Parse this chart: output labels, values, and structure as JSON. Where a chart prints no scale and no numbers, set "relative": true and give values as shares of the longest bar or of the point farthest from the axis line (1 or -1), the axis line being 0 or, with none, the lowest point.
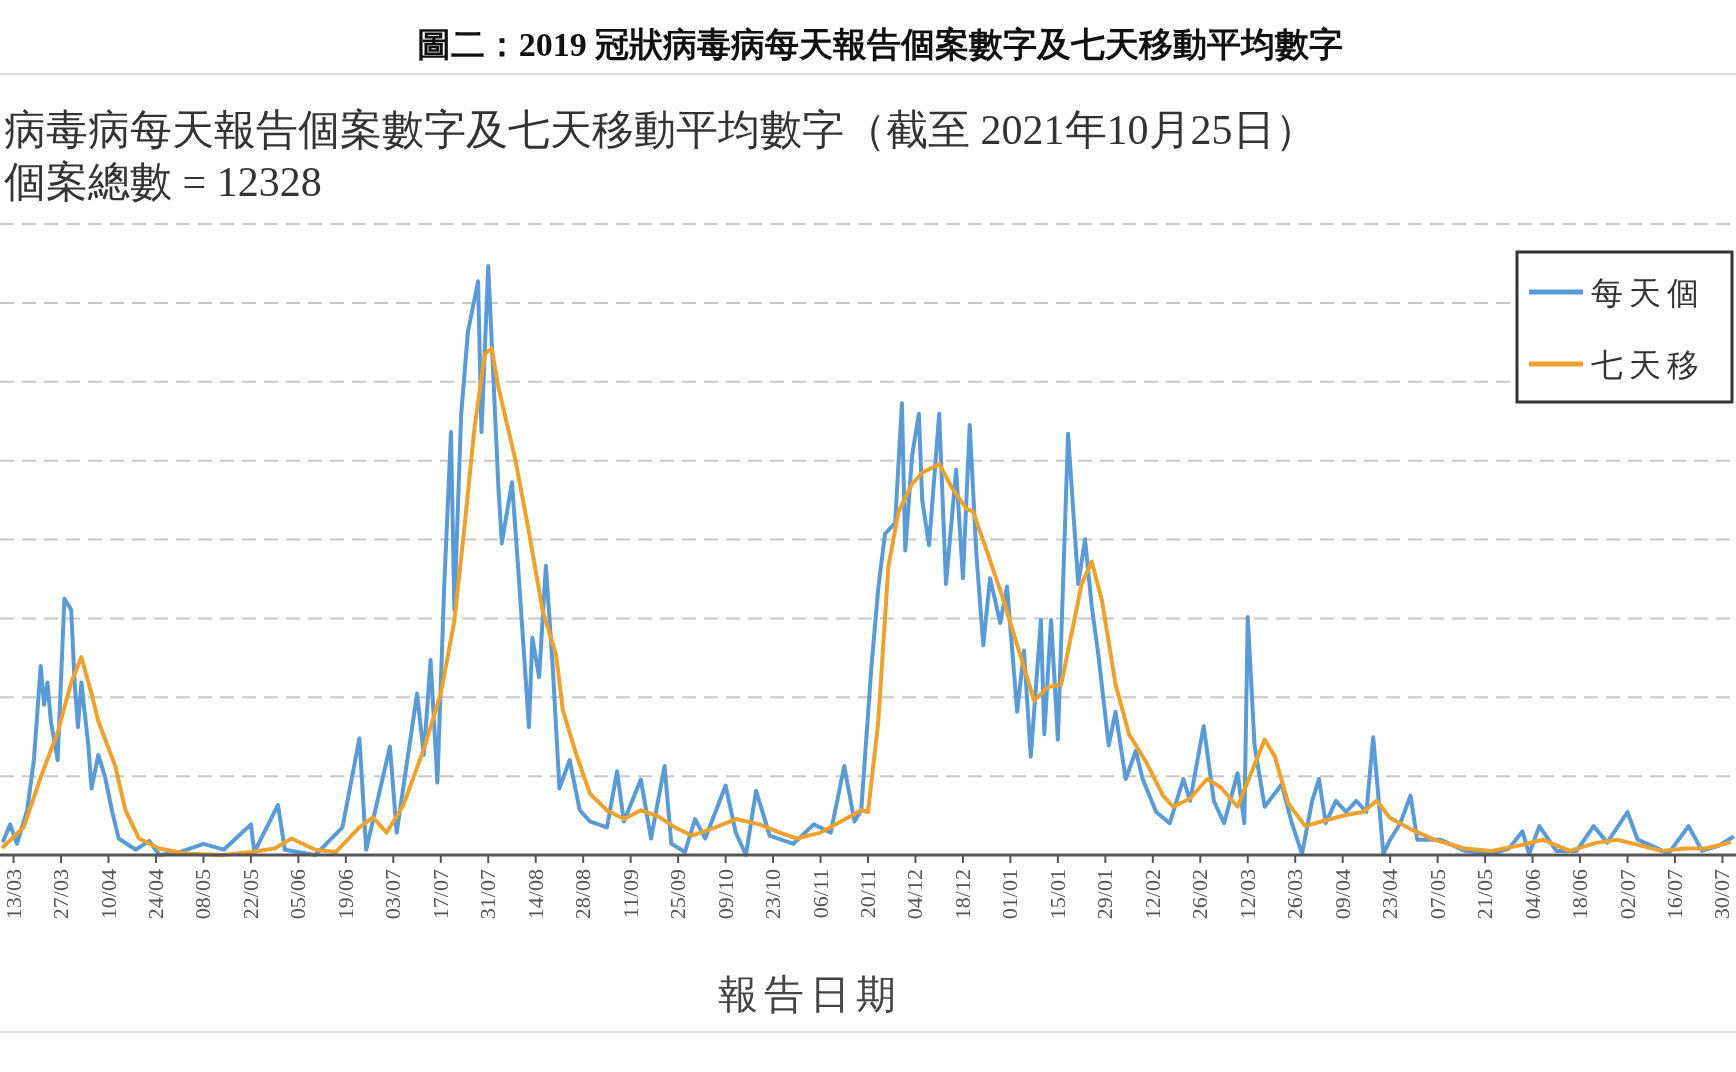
{
  "chart_data": {
    "type": "line",
    "title": "圖二：2019 冠狀病毒病每天報告個案數字及七天移動平均數字",
    "subtitle": "病毒病每天報告個案數字及七天移動平均數字（截至 2021年10月25日）",
    "annotations": [
      "個案總數 = 12328"
    ],
    "xlabel": "報告日期",
    "relative": true,
    "grid": "y",
    "legend": "top right",
    "xlim": [
      "2020-03-09",
      "2021-08-03"
    ],
    "xticks": [
      {
        "value": "2020-03-13",
        "label": "13/03"
      },
      {
        "value": "2020-03-27",
        "label": "27/03"
      },
      {
        "value": "2020-04-10",
        "label": "10/04"
      },
      {
        "value": "2020-04-24",
        "label": "24/04"
      },
      {
        "value": "2020-05-08",
        "label": "08/05"
      },
      {
        "value": "2020-05-22",
        "label": "22/05"
      },
      {
        "value": "2020-06-05",
        "label": "05/06"
      },
      {
        "value": "2020-06-19",
        "label": "19/06"
      },
      {
        "value": "2020-07-03",
        "label": "03/07"
      },
      {
        "value": "2020-07-17",
        "label": "17/07"
      },
      {
        "value": "2020-07-31",
        "label": "31/07"
      },
      {
        "value": "2020-08-14",
        "label": "14/08"
      },
      {
        "value": "2020-08-28",
        "label": "28/08"
      },
      {
        "value": "2020-09-11",
        "label": "11/09"
      },
      {
        "value": "2020-09-25",
        "label": "25/09"
      },
      {
        "value": "2020-10-09",
        "label": "09/10"
      },
      {
        "value": "2020-10-23",
        "label": "23/10"
      },
      {
        "value": "2020-11-06",
        "label": "06/11"
      },
      {
        "value": "2020-11-20",
        "label": "20/11"
      },
      {
        "value": "2020-12-04",
        "label": "04/12"
      },
      {
        "value": "2020-12-18",
        "label": "18/12"
      },
      {
        "value": "2021-01-01",
        "label": "01/01"
      },
      {
        "value": "2021-01-15",
        "label": "15/01"
      },
      {
        "value": "2021-01-29",
        "label": "29/01"
      },
      {
        "value": "2021-02-12",
        "label": "12/02"
      },
      {
        "value": "2021-02-26",
        "label": "26/02"
      },
      {
        "value": "2021-03-12",
        "label": "12/03"
      },
      {
        "value": "2021-03-26",
        "label": "26/03"
      },
      {
        "value": "2021-04-09",
        "label": "09/04"
      },
      {
        "value": "2021-04-23",
        "label": "23/04"
      },
      {
        "value": "2021-05-07",
        "label": "07/05"
      },
      {
        "value": "2021-05-21",
        "label": "21/05"
      },
      {
        "value": "2021-06-04",
        "label": "04/06"
      },
      {
        "value": "2021-06-18",
        "label": "18/06"
      },
      {
        "value": "2021-07-02",
        "label": "02/07"
      },
      {
        "value": "2021-07-16",
        "label": "16/07"
      },
      {
        "value": "2021-07-30",
        "label": "30/07"
      }
    ],
    "series": [
      {
        "name": "每天個",
        "color": "#5b9bd5",
        "x": [
          "2020-03-10",
          "2020-03-12",
          "2020-03-14",
          "2020-03-17",
          "2020-03-19",
          "2020-03-21",
          "2020-03-22",
          "2020-03-23",
          "2020-03-24",
          "2020-03-26",
          "2020-03-28",
          "2020-03-30",
          "2020-03-31",
          "2020-04-01",
          "2020-04-02",
          "2020-04-04",
          "2020-04-05",
          "2020-04-07",
          "2020-04-09",
          "2020-04-11",
          "2020-04-13",
          "2020-04-18",
          "2020-04-22",
          "2020-04-25",
          "2020-05-01",
          "2020-05-08",
          "2020-05-14",
          "2020-05-22",
          "2020-05-23",
          "2020-05-30",
          "2020-06-01",
          "2020-06-10",
          "2020-06-18",
          "2020-06-23",
          "2020-06-25",
          "2020-07-02",
          "2020-07-04",
          "2020-07-10",
          "2020-07-12",
          "2020-07-14",
          "2020-07-16",
          "2020-07-18",
          "2020-07-20",
          "2020-07-21",
          "2020-07-23",
          "2020-07-25",
          "2020-07-28",
          "2020-07-29",
          "2020-07-31",
          "2020-08-03",
          "2020-08-04",
          "2020-08-07",
          "2020-08-09",
          "2020-08-12",
          "2020-08-13",
          "2020-08-15",
          "2020-08-17",
          "2020-08-19",
          "2020-08-21",
          "2020-08-24",
          "2020-08-27",
          "2020-08-30",
          "2020-09-04",
          "2020-09-07",
          "2020-09-09",
          "2020-09-14",
          "2020-09-17",
          "2020-09-21",
          "2020-09-23",
          "2020-09-27",
          "2020-09-30",
          "2020-10-03",
          "2020-10-09",
          "2020-10-12",
          "2020-10-15",
          "2020-10-18",
          "2020-10-22",
          "2020-10-29",
          "2020-11-04",
          "2020-11-09",
          "2020-11-13",
          "2020-11-16",
          "2020-11-18",
          "2020-11-21",
          "2020-11-23",
          "2020-11-25",
          "2020-11-28",
          "2020-11-30",
          "2020-12-01",
          "2020-12-03",
          "2020-12-05",
          "2020-12-06",
          "2020-12-08",
          "2020-12-11",
          "2020-12-13",
          "2020-12-16",
          "2020-12-18",
          "2020-12-20",
          "2020-12-22",
          "2020-12-24",
          "2020-12-26",
          "2020-12-29",
          "2020-12-31",
          "2021-01-03",
          "2021-01-05",
          "2021-01-07",
          "2021-01-10",
          "2021-01-11",
          "2021-01-13",
          "2021-01-15",
          "2021-01-18",
          "2021-01-21",
          "2021-01-23",
          "2021-01-25",
          "2021-01-27",
          "2021-01-30",
          "2021-02-01",
          "2021-02-04",
          "2021-02-07",
          "2021-02-09",
          "2021-02-13",
          "2021-02-17",
          "2021-02-21",
          "2021-02-23",
          "2021-02-27",
          "2021-03-02",
          "2021-03-05",
          "2021-03-09",
          "2021-03-11",
          "2021-03-12",
          "2021-03-14",
          "2021-03-17",
          "2021-03-22",
          "2021-03-25",
          "2021-03-28",
          "2021-03-31",
          "2021-04-02",
          "2021-04-04",
          "2021-04-07",
          "2021-04-10",
          "2021-04-13",
          "2021-04-16",
          "2021-04-18",
          "2021-04-21",
          "2021-04-23",
          "2021-04-26",
          "2021-04-29",
          "2021-05-01",
          "2021-05-08",
          "2021-05-15",
          "2021-05-23",
          "2021-05-28",
          "2021-06-01",
          "2021-06-03",
          "2021-06-06",
          "2021-06-11",
          "2021-06-17",
          "2021-06-22",
          "2021-06-26",
          "2021-07-02",
          "2021-07-05",
          "2021-07-11",
          "2021-07-14",
          "2021-07-20",
          "2021-07-24",
          "2021-07-29",
          "2021-08-02"
        ],
        "values": [
          0.024,
          0.052,
          0.019,
          0.076,
          0.161,
          0.321,
          0.255,
          0.293,
          0.227,
          0.161,
          0.435,
          0.416,
          0.293,
          0.217,
          0.293,
          0.189,
          0.113,
          0.17,
          0.132,
          0.076,
          0.028,
          0.009,
          0.024,
          0,
          0.005,
          0.019,
          0.009,
          0.052,
          0.005,
          0.085,
          0.009,
          0,
          0.047,
          0.198,
          0.009,
          0.184,
          0.038,
          0.274,
          0.17,
          0.331,
          0.123,
          0.454,
          0.718,
          0.416,
          0.747,
          0.888,
          0.974,
          0.718,
          1.0,
          0.624,
          0.529,
          0.633,
          0.473,
          0.217,
          0.369,
          0.302,
          0.491,
          0.321,
          0.113,
          0.161,
          0.076,
          0.057,
          0.047,
          0.142,
          0.057,
          0.128,
          0.028,
          0.151,
          0.019,
          0.005,
          0.061,
          0.028,
          0.118,
          0.038,
          0,
          0.109,
          0.033,
          0.019,
          0.052,
          0.038,
          0.151,
          0.057,
          0.076,
          0.319,
          0.451,
          0.545,
          0.564,
          0.767,
          0.517,
          0.678,
          0.749,
          0.602,
          0.526,
          0.749,
          0.46,
          0.654,
          0.47,
          0.73,
          0.508,
          0.356,
          0.47,
          0.394,
          0.456,
          0.243,
          0.347,
          0.167,
          0.399,
          0.205,
          0.399,
          0.196,
          0.715,
          0.46,
          0.536,
          0.422,
          0.337,
          0.186,
          0.243,
          0.129,
          0.177,
          0.129,
          0.073,
          0.054,
          0.129,
          0.092,
          0.219,
          0.092,
          0.054,
          0.139,
          0.054,
          0.404,
          0.186,
          0.082,
          0.12,
          0.054,
          0.002,
          0.092,
          0.129,
          0.054,
          0.092,
          0.073,
          0.092,
          0.073,
          0.2,
          0.002,
          0.026,
          0.054,
          0.101,
          0.026,
          0.026,
          0.007,
          0.002,
          0.011,
          0.04,
          0.002,
          0.049,
          0.007,
          0.007,
          0.049,
          0.021,
          0.073,
          0.026,
          0.011,
          0.002,
          0.049,
          0.007,
          0.016,
          0.03
        ]
      },
      {
        "name": "七天移",
        "color": "#eda12f",
        "x": [
          "2020-03-10",
          "2020-03-16",
          "2020-03-21",
          "2020-03-26",
          "2020-03-30",
          "2020-04-02",
          "2020-04-05",
          "2020-04-07",
          "2020-04-12",
          "2020-04-15",
          "2020-04-19",
          "2020-04-25",
          "2020-05-03",
          "2020-05-14",
          "2020-05-22",
          "2020-05-29",
          "2020-06-03",
          "2020-06-10",
          "2020-06-16",
          "2020-06-23",
          "2020-06-27",
          "2020-07-01",
          "2020-07-06",
          "2020-07-12",
          "2020-07-17",
          "2020-07-21",
          "2020-07-24",
          "2020-07-27",
          "2020-07-30",
          "2020-08-01",
          "2020-08-03",
          "2020-08-08",
          "2020-08-12",
          "2020-08-16",
          "2020-08-20",
          "2020-08-22",
          "2020-08-26",
          "2020-08-30",
          "2020-09-04",
          "2020-09-09",
          "2020-09-14",
          "2020-09-19",
          "2020-09-24",
          "2020-09-29",
          "2020-10-06",
          "2020-10-12",
          "2020-10-19",
          "2020-10-25",
          "2020-10-30",
          "2020-11-06",
          "2020-11-12",
          "2020-11-18",
          "2020-11-20",
          "2020-11-23",
          "2020-11-26",
          "2020-11-29",
          "2020-12-03",
          "2020-12-06",
          "2020-12-11",
          "2020-12-15",
          "2020-12-19",
          "2020-12-21",
          "2020-12-25",
          "2020-12-30",
          "2021-01-02",
          "2021-01-05",
          "2021-01-08",
          "2021-01-12",
          "2021-01-16",
          "2021-01-19",
          "2021-01-22",
          "2021-01-25",
          "2021-01-28",
          "2021-02-01",
          "2021-02-05",
          "2021-02-10",
          "2021-02-15",
          "2021-02-18",
          "2021-02-23",
          "2021-02-28",
          "2021-03-04",
          "2021-03-09",
          "2021-03-13",
          "2021-03-17",
          "2021-03-20",
          "2021-03-24",
          "2021-03-29",
          "2021-04-04",
          "2021-04-10",
          "2021-04-15",
          "2021-04-19",
          "2021-04-23",
          "2021-04-29",
          "2021-05-06",
          "2021-05-15",
          "2021-05-23",
          "2021-05-31",
          "2021-06-07",
          "2021-06-15",
          "2021-06-23",
          "2021-06-29",
          "2021-07-06",
          "2021-07-12",
          "2021-07-19",
          "2021-07-25",
          "2021-08-01"
        ],
        "values": [
          0.014,
          0.047,
          0.132,
          0.208,
          0.293,
          0.336,
          0.274,
          0.227,
          0.151,
          0.076,
          0.028,
          0.011,
          0.002,
          0,
          0.005,
          0.011,
          0.028,
          0.009,
          0.005,
          0.047,
          0.064,
          0.038,
          0.085,
          0.18,
          0.274,
          0.397,
          0.558,
          0.728,
          0.851,
          0.86,
          0.794,
          0.671,
          0.548,
          0.416,
          0.34,
          0.246,
          0.17,
          0.104,
          0.076,
          0.061,
          0.076,
          0.066,
          0.047,
          0.033,
          0.047,
          0.061,
          0.052,
          0.038,
          0.028,
          0.038,
          0.057,
          0.076,
          0.073,
          0.224,
          0.489,
          0.583,
          0.63,
          0.649,
          0.664,
          0.621,
          0.588,
          0.583,
          0.517,
          0.432,
          0.375,
          0.319,
          0.262,
          0.285,
          0.29,
          0.375,
          0.46,
          0.498,
          0.432,
          0.29,
          0.205,
          0.158,
          0.101,
          0.082,
          0.096,
          0.129,
          0.115,
          0.082,
          0.139,
          0.196,
          0.167,
          0.087,
          0.049,
          0.059,
          0.068,
          0.073,
          0.092,
          0.063,
          0.044,
          0.026,
          0.011,
          0.007,
          0.016,
          0.026,
          0.007,
          0.021,
          0.026,
          0.016,
          0.007,
          0.011,
          0.011,
          0.021
        ]
      }
    ]
  }
}
